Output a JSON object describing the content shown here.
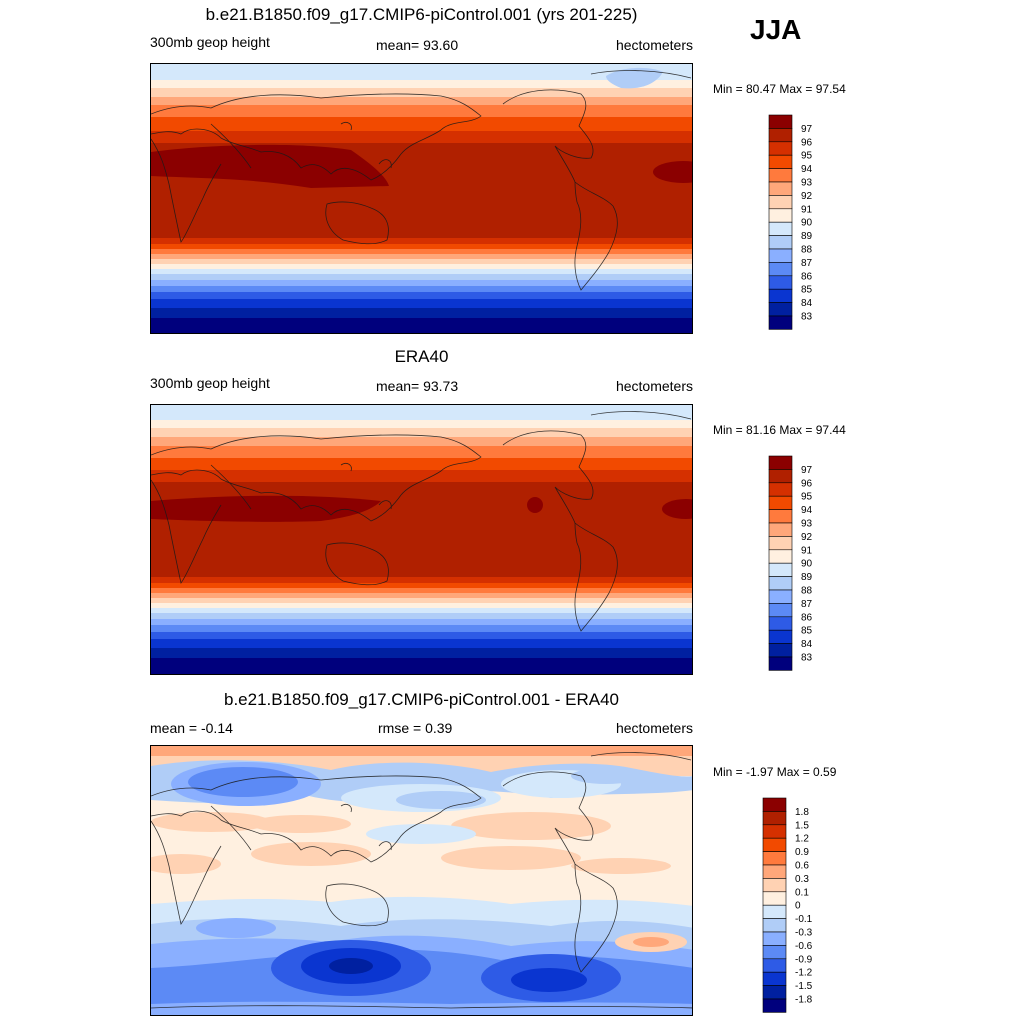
{
  "season": "JJA",
  "panels": [
    {
      "title": "b.e21.B1850.f09_g17.CMIP6-piControl.001 (yrs 201-225)",
      "left_label": "300mb geop height",
      "center_label": "mean=  93.60",
      "right_label": "hectometers",
      "minmax": "Min =  80.47 Max =  97.54",
      "colorbar": {
        "labels": [
          "97",
          "96",
          "95",
          "94",
          "93",
          "92",
          "91",
          "90",
          "89",
          "88",
          "87",
          "86",
          "85",
          "84",
          "83"
        ],
        "colors": [
          "#8b0000",
          "#b02000",
          "#d53000",
          "#f24a00",
          "#ff7a3d",
          "#ffa77a",
          "#ffd2b3",
          "#fff0e0",
          "#d4e8fb",
          "#b0cdf7",
          "#8aafff",
          "#5c8af5",
          "#2e5be6",
          "#0a35d0",
          "#0020a0",
          "#00007d"
        ]
      }
    },
    {
      "title": "ERA40",
      "left_label": "300mb geop height",
      "center_label": "mean=  93.73",
      "right_label": "hectometers",
      "minmax": "Min =  81.16 Max =  97.44",
      "colorbar": {
        "labels": [
          "97",
          "96",
          "95",
          "94",
          "93",
          "92",
          "91",
          "90",
          "89",
          "88",
          "87",
          "86",
          "85",
          "84",
          "83"
        ],
        "colors": [
          "#8b0000",
          "#b02000",
          "#d53000",
          "#f24a00",
          "#ff7a3d",
          "#ffa77a",
          "#ffd2b3",
          "#fff0e0",
          "#d4e8fb",
          "#b0cdf7",
          "#8aafff",
          "#5c8af5",
          "#2e5be6",
          "#0a35d0",
          "#0020a0",
          "#00007d"
        ]
      }
    },
    {
      "title": "b.e21.B1850.f09_g17.CMIP6-piControl.001 - ERA40",
      "left_label": "mean =  -0.14",
      "center_label": "rmse =   0.39",
      "right_label": "hectometers",
      "minmax": "Min =  -1.97 Max =   0.59",
      "colorbar": {
        "labels": [
          "1.8",
          "1.5",
          "1.2",
          "0.9",
          "0.6",
          "0.3",
          "0.1",
          "0",
          "-0.1",
          "-0.3",
          "-0.6",
          "-0.9",
          "-1.2",
          "-1.5",
          "-1.8"
        ],
        "colors": [
          "#8b0000",
          "#b02000",
          "#d53000",
          "#f24a00",
          "#ff7a3d",
          "#ffa77a",
          "#ffd2b3",
          "#fff0e0",
          "#d4e8fb",
          "#b0cdf7",
          "#8aafff",
          "#5c8af5",
          "#2e5be6",
          "#0a35d0",
          "#0020a0",
          "#00007d"
        ]
      }
    }
  ]
}
